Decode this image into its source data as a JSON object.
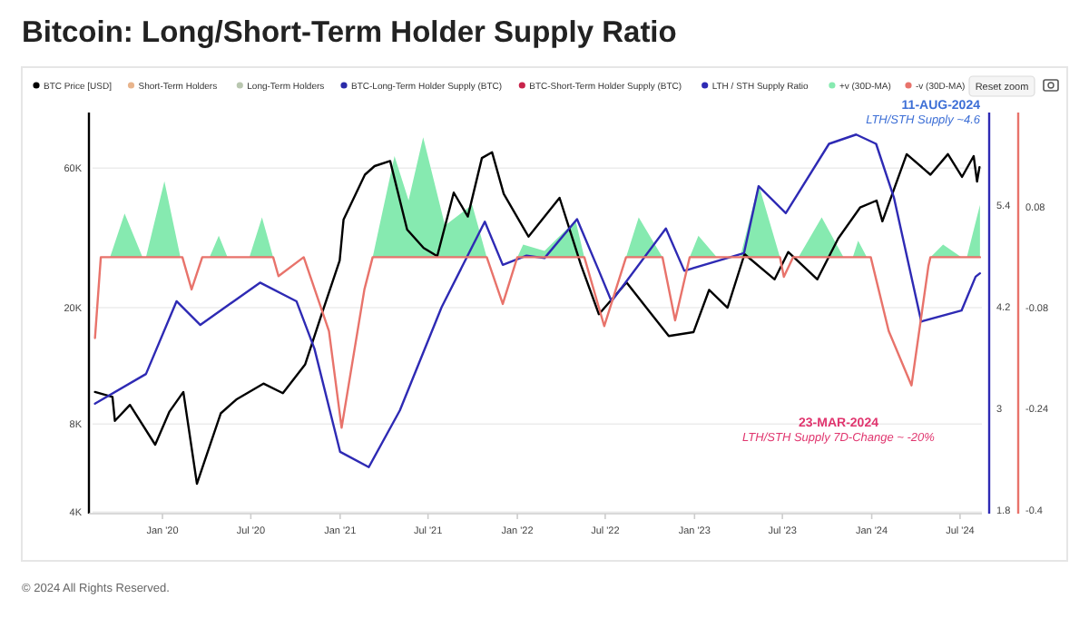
{
  "chart_data": {
    "type": "line",
    "title": "Bitcoin: Long/Short-Term Holder Supply Ratio",
    "xlim": [
      "2019-08-10",
      "2024-08-15"
    ],
    "xticks": [
      {
        "value": "2020-01-01",
        "label": "Jan '20"
      },
      {
        "value": "2020-07-01",
        "label": "Jul '20"
      },
      {
        "value": "2021-01-01",
        "label": "Jan '21"
      },
      {
        "value": "2021-07-01",
        "label": "Jul '21"
      },
      {
        "value": "2022-01-01",
        "label": "Jan '22"
      },
      {
        "value": "2022-07-01",
        "label": "Jul '22"
      },
      {
        "value": "2023-01-01",
        "label": "Jan '23"
      },
      {
        "value": "2023-07-01",
        "label": "Jul '23"
      },
      {
        "value": "2024-01-01",
        "label": "Jan '24"
      },
      {
        "value": "2024-07-01",
        "label": "Jul '24"
      }
    ],
    "log": "y",
    "ylim": [
      3950,
      93000
    ],
    "yticks": [
      {
        "value": 4000,
        "label": "4K"
      },
      {
        "value": 8000,
        "label": "8K"
      },
      {
        "value": 20000,
        "label": "20K"
      },
      {
        "value": 60000,
        "label": "60K"
      }
    ],
    "y2lim": [
      1.76,
      6.5
    ],
    "y2ticks": [
      1.8,
      3,
      4.2,
      5.4
    ],
    "y3lim": [
      -0.406,
      0.229
    ],
    "y3ticks": [
      -0.4,
      -0.24,
      -0.08,
      0.08
    ],
    "grid": "y",
    "legend": "top left",
    "series": [
      {
        "name": "BTC Price [USD]",
        "color": "#000000",
        "axis": "y",
        "x": [
          "2019-08-15",
          "2019-09-20",
          "2019-09-25",
          "2019-10-26",
          "2019-12-17",
          "2020-01-15",
          "2020-02-13",
          "2020-03-12",
          "2020-04-30",
          "2020-06-01",
          "2020-07-27",
          "2020-09-05",
          "2020-10-21",
          "2020-11-24",
          "2020-12-31",
          "2021-01-08",
          "2021-02-21",
          "2021-03-13",
          "2021-04-14",
          "2021-05-19",
          "2021-06-22",
          "2021-07-20",
          "2021-08-23",
          "2021-09-21",
          "2021-10-20",
          "2021-11-10",
          "2021-12-04",
          "2022-01-24",
          "2022-03-29",
          "2022-05-12",
          "2022-06-18",
          "2022-08-14",
          "2022-09-30",
          "2022-11-09",
          "2022-12-30",
          "2023-01-31",
          "2023-03-10",
          "2023-04-14",
          "2023-06-15",
          "2023-07-13",
          "2023-09-11",
          "2023-10-24",
          "2023-12-08",
          "2024-01-11",
          "2024-01-23",
          "2024-03-13",
          "2024-05-01",
          "2024-06-06",
          "2024-07-05",
          "2024-07-29",
          "2024-08-05",
          "2024-08-10"
        ],
        "values": [
          10300,
          9900,
          8200,
          9300,
          6800,
          8800,
          10300,
          5000,
          8700,
          9700,
          11000,
          10200,
          12800,
          19000,
          29000,
          40000,
          57000,
          61000,
          63500,
          37000,
          32000,
          30000,
          49500,
          41000,
          65000,
          68000,
          49000,
          35000,
          47500,
          28000,
          19000,
          24400,
          19400,
          16000,
          16500,
          23000,
          20000,
          30500,
          25000,
          31000,
          25000,
          34500,
          44000,
          46500,
          39500,
          67000,
          57000,
          67000,
          56000,
          66000,
          54000,
          60500
        ]
      },
      {
        "name": "Short-Term Holders",
        "color": "#e8b48c",
        "axis": "y"
      },
      {
        "name": "Long-Term Holders",
        "color": "#b9c7b0",
        "axis": "y"
      },
      {
        "name": "BTC-Long-Term Holder Supply (BTC)",
        "color": "#2a2aa8",
        "axis": "y"
      },
      {
        "name": "BTC-Short-Term Holder Supply (BTC)",
        "color": "#c8234a",
        "axis": "y"
      },
      {
        "name": "LTH / STH Supply Ratio",
        "color": "#2e2ab4",
        "axis": "y2",
        "x": [
          "2019-08-15",
          "2019-11-28",
          "2020-01-30",
          "2020-03-19",
          "2020-07-20",
          "2020-10-03",
          "2020-11-09",
          "2021-01-01",
          "2021-03-01",
          "2021-05-04",
          "2021-07-29",
          "2021-10-26",
          "2021-12-02",
          "2022-01-20",
          "2022-02-26",
          "2022-05-04",
          "2022-06-18",
          "2022-07-14",
          "2022-11-03",
          "2022-12-11",
          "2023-04-13",
          "2023-05-13",
          "2023-07-08",
          "2023-10-05",
          "2023-11-30",
          "2024-01-10",
          "2024-02-16",
          "2024-04-12",
          "2024-07-04",
          "2024-08-02",
          "2024-08-11"
        ],
        "values": [
          3.06,
          3.41,
          4.27,
          3.99,
          4.49,
          4.27,
          3.71,
          2.49,
          2.31,
          2.98,
          4.2,
          5.21,
          4.7,
          4.81,
          4.78,
          5.24,
          4.63,
          4.27,
          5.13,
          4.63,
          4.84,
          5.63,
          5.31,
          6.13,
          6.24,
          6.13,
          5.49,
          4.03,
          4.16,
          4.56,
          4.6
        ]
      },
      {
        "name": "+v (30D-MA)",
        "type": "area",
        "color": "#86eab0",
        "axis": "y3",
        "x": [
          "2019-09-15",
          "2019-10-15",
          "2019-11-21",
          "2019-11-28",
          "2020-01-05",
          "2020-02-07",
          "2020-04-07",
          "2020-04-26",
          "2020-05-14",
          "2020-06-28",
          "2020-07-24",
          "2020-08-16",
          "2021-03-09",
          "2021-04-23",
          "2021-05-22",
          "2021-06-21",
          "2021-08-05",
          "2021-09-30",
          "2021-10-30",
          "2022-01-01",
          "2022-01-13",
          "2022-02-26",
          "2022-05-01",
          "2022-05-19",
          "2022-08-13",
          "2022-09-08",
          "2022-10-27",
          "2022-12-22",
          "2023-01-09",
          "2023-02-16",
          "2023-04-05",
          "2023-05-13",
          "2023-06-26",
          "2023-08-03",
          "2023-09-20",
          "2023-11-04",
          "2023-11-23",
          "2023-12-04",
          "2023-12-22",
          "2024-05-01",
          "2024-05-27",
          "2024-07-04",
          "2024-07-15",
          "2024-08-11"
        ],
        "values": [
          0,
          0.069,
          0,
          0,
          0.12,
          0,
          0,
          0.034,
          0,
          0,
          0.063,
          0,
          0,
          0.16,
          0.09,
          0.19,
          0.05,
          0.083,
          0,
          0,
          0.02,
          0.01,
          0.058,
          0,
          0,
          0.063,
          0,
          0,
          0.034,
          0,
          0,
          0.115,
          0,
          0,
          0.063,
          0,
          0,
          0.026,
          0,
          0,
          0.02,
          0,
          0,
          0.083
        ]
      },
      {
        "name": "-v (30D-MA)",
        "color": "#e8736b",
        "axis": "y3",
        "x": [
          "2019-08-15",
          "2019-08-27",
          "2020-02-11",
          "2020-03-01",
          "2020-03-23",
          "2020-08-16",
          "2020-08-27",
          "2020-10-18",
          "2020-12-09",
          "2021-01-04",
          "2021-02-20",
          "2021-03-09",
          "2021-10-30",
          "2021-12-02",
          "2022-01-01",
          "2022-05-19",
          "2022-06-29",
          "2022-08-13",
          "2022-10-27",
          "2022-11-22",
          "2022-12-22",
          "2023-06-26",
          "2023-07-04",
          "2023-07-23",
          "2023-12-30",
          "2024-02-05",
          "2024-03-23",
          "2024-04-27",
          "2024-05-01",
          "2024-08-11"
        ],
        "values": [
          -0.128,
          0,
          0,
          -0.051,
          0,
          0,
          -0.03,
          0,
          -0.117,
          -0.27,
          -0.051,
          0,
          0,
          -0.074,
          0,
          0,
          -0.109,
          0,
          0,
          -0.1,
          0,
          0,
          -0.031,
          0,
          0,
          -0.117,
          -0.203,
          -0.013,
          0,
          0
        ]
      }
    ],
    "annotations": [
      "11-AUG-2024",
      "LTH/STH Supply ~4.6",
      "23-MAR-2024",
      "LTH/STH Supply 7D-Change ~ -20%",
      "Reset zoom",
      "© 2024 All Rights Reserved."
    ]
  }
}
